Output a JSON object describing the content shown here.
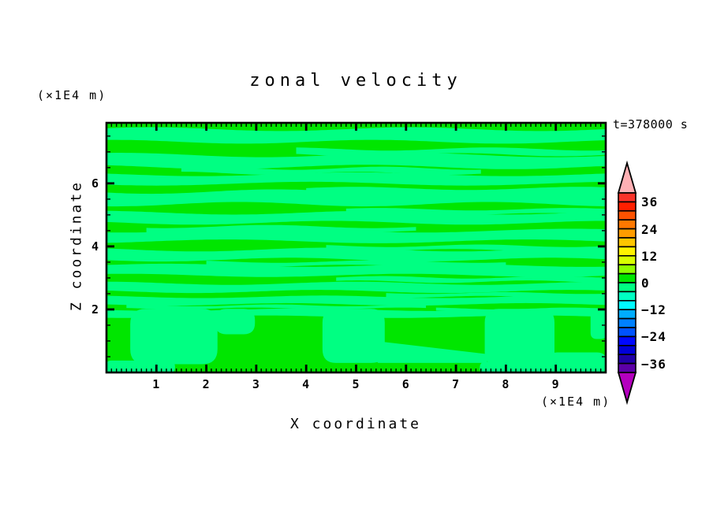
{
  "chart_data": {
    "type": "heatmap",
    "subtype": "filled-contour",
    "title": "zonal velocity",
    "time_annotation": "t=378000 s",
    "xlabel": "X coordinate",
    "ylabel": "Z coordinate",
    "x_unit": "(×1E4 m)",
    "y_unit": "(×1E4 m)",
    "xlim": [
      0,
      10
    ],
    "ylim": [
      0,
      7.92
    ],
    "x_tick_labels": [
      1,
      2,
      3,
      4,
      5,
      6,
      7,
      8,
      9
    ],
    "y_tick_labels": [
      2,
      4,
      6
    ],
    "x_minor_step": 0.1,
    "y_minor_step": 0.5,
    "grid": false,
    "field_colors": {
      "green": "#00E600",
      "spring": "#00FF82"
    },
    "visible_levels": {
      "green_band": [
        0,
        4
      ],
      "spring_band": [
        -4,
        0
      ]
    },
    "colorbar": {
      "orientation": "vertical-right",
      "boundary_max": 40,
      "boundary_min": -40,
      "step": 4,
      "labels": [
        {
          "text": "36",
          "value": 36
        },
        {
          "text": "24",
          "value": 24
        },
        {
          "text": "12",
          "value": 12
        },
        {
          "text": "0",
          "value": 0
        },
        {
          "text": "−12",
          "value": -12
        },
        {
          "text": "−24",
          "value": -24
        },
        {
          "text": "−36",
          "value": -36
        }
      ],
      "cell_colors_top_to_bottom": [
        "#FA332A",
        "#FF1F00",
        "#FF5200",
        "#FF7800",
        "#FF9C00",
        "#FFC600",
        "#FFF200",
        "#D8FF00",
        "#8EFF00",
        "#00E600",
        "#00FF82",
        "#00FFC3",
        "#00FBFF",
        "#00ACFF",
        "#0080FF",
        "#0053FF",
        "#0008FF",
        "#0000D8",
        "#2000A8",
        "#5C00A8"
      ],
      "over_arrow_color": "#FFB0B4",
      "under_arrow_color": "#B400BE"
    },
    "stripe_bands_spring": [
      {
        "c": 7.52,
        "h": 0.2,
        "x0": 0,
        "x1": 10,
        "a": 0.06,
        "wl": 5.2,
        "ph": 0.5
      },
      {
        "c": 7.0,
        "h": 0.09,
        "x0": 3.8,
        "x1": 10,
        "a": 0.05,
        "wl": 4.0,
        "ph": 2.1
      },
      {
        "c": 6.71,
        "h": 0.19,
        "x0": 0,
        "x1": 10,
        "a": 0.07,
        "wl": 5.8,
        "ph": 1.3
      },
      {
        "c": 6.4,
        "h": 0.08,
        "x0": 1.5,
        "x1": 7.5,
        "a": 0.05,
        "wl": 3.5,
        "ph": 4.2
      },
      {
        "c": 6.14,
        "h": 0.15,
        "x0": 0,
        "x1": 10,
        "a": 0.06,
        "wl": 6.2,
        "ph": 2.8
      },
      {
        "c": 5.75,
        "h": 0.09,
        "x0": 4.0,
        "x1": 10,
        "a": 0.05,
        "wl": 4.5,
        "ph": 0.9
      },
      {
        "c": 5.54,
        "h": 0.2,
        "x0": 0,
        "x1": 10,
        "a": 0.07,
        "wl": 5.0,
        "ph": 3.6
      },
      {
        "c": 5.1,
        "h": 0.08,
        "x0": 4.8,
        "x1": 10,
        "a": 0.04,
        "wl": 3.8,
        "ph": 5.1
      },
      {
        "c": 4.91,
        "h": 0.16,
        "x0": 0,
        "x1": 10,
        "a": 0.06,
        "wl": 5.5,
        "ph": 1.8
      },
      {
        "c": 4.55,
        "h": 0.08,
        "x0": 0.8,
        "x1": 6.2,
        "a": 0.05,
        "wl": 4.2,
        "ph": 3.0
      },
      {
        "c": 4.33,
        "h": 0.17,
        "x0": 0,
        "x1": 10,
        "a": 0.06,
        "wl": 6.0,
        "ph": 4.4
      },
      {
        "c": 3.95,
        "h": 0.07,
        "x0": 4.4,
        "x1": 10,
        "a": 0.04,
        "wl": 3.6,
        "ph": 1.1
      },
      {
        "c": 3.74,
        "h": 0.16,
        "x0": 0,
        "x1": 10,
        "a": 0.06,
        "wl": 5.2,
        "ph": 2.5
      },
      {
        "c": 3.45,
        "h": 0.07,
        "x0": 2.0,
        "x1": 8.0,
        "a": 0.04,
        "wl": 4.0,
        "ph": 5.6
      },
      {
        "c": 3.24,
        "h": 0.16,
        "x0": 0,
        "x1": 10,
        "a": 0.05,
        "wl": 5.6,
        "ph": 0.2
      },
      {
        "c": 2.95,
        "h": 0.07,
        "x0": 4.6,
        "x1": 10,
        "a": 0.04,
        "wl": 3.4,
        "ph": 3.9
      },
      {
        "c": 2.7,
        "h": 0.13,
        "x0": 0,
        "x1": 10,
        "a": 0.05,
        "wl": 5.0,
        "ph": 1.6
      },
      {
        "c": 2.46,
        "h": 0.06,
        "x0": 5.6,
        "x1": 10,
        "a": 0.03,
        "wl": 3.2,
        "ph": 4.7
      },
      {
        "c": 2.28,
        "h": 0.12,
        "x0": 0,
        "x1": 10,
        "a": 0.04,
        "wl": 4.8,
        "ph": 2.2
      },
      {
        "c": 2.08,
        "h": 0.05,
        "x0": 0.4,
        "x1": 6.4,
        "a": 0.03,
        "wl": 3.0,
        "ph": 0.8
      },
      {
        "c": 1.99,
        "h": 0.04,
        "x0": 6.6,
        "x1": 10,
        "a": 0.03,
        "wl": 2.8,
        "ph": 5.9
      },
      {
        "c": 1.88,
        "h": 0.11,
        "x0": 0,
        "x1": 10,
        "a": 0.04,
        "wl": 5.4,
        "ph": 3.3
      }
    ],
    "bottom_zone_spring_shapes": [
      {
        "kind": "rrect",
        "x0": 0.5,
        "x1": 2.2,
        "z0": 0.3,
        "z1": 1.98,
        "r": 0.28
      },
      {
        "kind": "rrect",
        "x0": 0.0,
        "x1": 1.35,
        "z0": 0.0,
        "z1": 0.34,
        "r": 0.12
      },
      {
        "kind": "rrect",
        "x0": 2.2,
        "x1": 2.95,
        "z0": 1.25,
        "z1": 1.98,
        "r": 0.2
      },
      {
        "kind": "rrect",
        "x0": 4.35,
        "x1": 5.55,
        "z0": 0.34,
        "z1": 1.98,
        "r": 0.25
      },
      {
        "kind": "poly",
        "pts": [
          [
            5.45,
            0.34
          ],
          [
            5.45,
            0.95
          ],
          [
            7.6,
            0.55
          ],
          [
            7.6,
            0.34
          ]
        ]
      },
      {
        "kind": "rrect",
        "x0": 7.6,
        "x1": 8.95,
        "z0": 0.25,
        "z1": 1.98,
        "r": 0.25
      },
      {
        "kind": "rrect",
        "x0": 7.5,
        "x1": 8.85,
        "z0": 0.0,
        "z1": 0.3,
        "r": 0.1
      },
      {
        "kind": "rrect",
        "x0": 8.85,
        "x1": 10.0,
        "z0": 0.0,
        "z1": 0.6,
        "r": 0.18
      },
      {
        "kind": "rrect",
        "x0": 9.72,
        "x1": 10.0,
        "z0": 1.1,
        "z1": 1.98,
        "r": 0.1
      }
    ]
  }
}
